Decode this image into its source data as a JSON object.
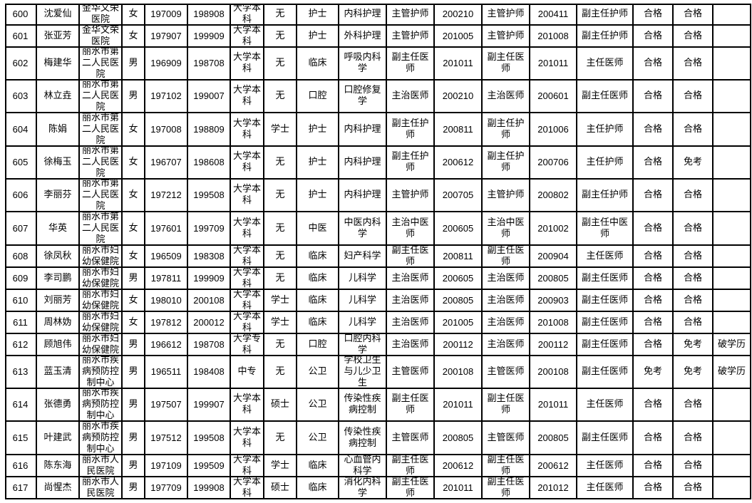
{
  "rows": [
    [
      "600",
      "沈爱仙",
      "金华文荣医院",
      "女",
      "197009",
      "198908",
      "大学本科",
      "无",
      "护士",
      "内科护理",
      "主管护师",
      "200210",
      "主管护师",
      "200411",
      "副主任护师",
      "合格",
      "合格",
      ""
    ],
    [
      "601",
      "张亚芳",
      "金华文荣医院",
      "女",
      "197907",
      "199909",
      "大学本科",
      "无",
      "护士",
      "外科护理",
      "主管护师",
      "201005",
      "主管护师",
      "201008",
      "副主任护师",
      "合格",
      "合格",
      ""
    ],
    [
      "602",
      "梅建华",
      "丽水市第二人民医院",
      "男",
      "196909",
      "198708",
      "大学本科",
      "无",
      "临床",
      "呼吸内科学",
      "副主任医师",
      "201011",
      "副主任医师",
      "201011",
      "主任医师",
      "合格",
      "合格",
      ""
    ],
    [
      "603",
      "林立垚",
      "丽水市第二人民医院",
      "男",
      "197102",
      "199007",
      "大学本科",
      "无",
      "口腔",
      "口腔修复学",
      "主治医师",
      "200210",
      "主治医师",
      "200601",
      "副主任医师",
      "合格",
      "合格",
      ""
    ],
    [
      "604",
      "陈娟",
      "丽水市第二人民医院",
      "女",
      "197008",
      "198809",
      "大学本科",
      "学士",
      "护士",
      "内科护理",
      "副主任护师",
      "200811",
      "副主任护师",
      "201006",
      "主任护师",
      "合格",
      "合格",
      ""
    ],
    [
      "605",
      "徐梅玉",
      "丽水市第二人民医院",
      "女",
      "196707",
      "198608",
      "大学本科",
      "无",
      "护士",
      "内科护理",
      "副主任护师",
      "200612",
      "副主任护师",
      "200706",
      "主任护师",
      "合格",
      "免考",
      ""
    ],
    [
      "606",
      "李丽芬",
      "丽水市第二人民医院",
      "女",
      "197212",
      "199508",
      "大学本科",
      "无",
      "护士",
      "内科护理",
      "主管护师",
      "200705",
      "主管护师",
      "200802",
      "副主任护师",
      "合格",
      "合格",
      ""
    ],
    [
      "607",
      "华英",
      "丽水市第二人民医院",
      "女",
      "197601",
      "199709",
      "大学本科",
      "无",
      "中医",
      "中医内科学",
      "主治中医师",
      "200605",
      "主治中医师",
      "201002",
      "副主任中医师",
      "合格",
      "合格",
      ""
    ],
    [
      "608",
      "徐凤秋",
      "丽水市妇幼保健院",
      "女",
      "196509",
      "198308",
      "大学本科",
      "无",
      "临床",
      "妇产科学",
      "副主任医师",
      "200811",
      "副主任医师",
      "200904",
      "主任医师",
      "合格",
      "合格",
      ""
    ],
    [
      "609",
      "李司鹏",
      "丽水市妇幼保健院",
      "男",
      "197811",
      "199909",
      "大学本科",
      "无",
      "临床",
      "儿科学",
      "主治医师",
      "200605",
      "主治医师",
      "200805",
      "副主任医师",
      "合格",
      "合格",
      ""
    ],
    [
      "610",
      "刘丽芳",
      "丽水市妇幼保健院",
      "女",
      "198010",
      "200108",
      "大学本科",
      "学士",
      "临床",
      "儿科学",
      "主治医师",
      "200805",
      "主治医师",
      "200903",
      "副主任医师",
      "合格",
      "合格",
      ""
    ],
    [
      "611",
      "周林妫",
      "丽水市妇幼保健院",
      "女",
      "197812",
      "200012",
      "大学本科",
      "学士",
      "临床",
      "儿科学",
      "主治医师",
      "201005",
      "主治医师",
      "201008",
      "副主任医师",
      "合格",
      "合格",
      ""
    ],
    [
      "612",
      "顾旭伟",
      "丽水市妇幼保健院",
      "男",
      "196612",
      "198708",
      "大学专科",
      "无",
      "口腔",
      "口腔内科学",
      "主治医师",
      "200112",
      "主治医师",
      "200112",
      "副主任医师",
      "合格",
      "免考",
      "破学历"
    ],
    [
      "613",
      "蓝玉清",
      "丽水市疾病预防控制中心",
      "男",
      "196511",
      "198408",
      "中专",
      "无",
      "公卫",
      "学校卫生与儿少卫生",
      "主管医师",
      "200108",
      "主管医师",
      "200108",
      "副主任医师",
      "免考",
      "免考",
      "破学历"
    ],
    [
      "614",
      "张德勇",
      "丽水市疾病预防控制中心",
      "男",
      "197507",
      "199907",
      "大学本科",
      "硕士",
      "公卫",
      "传染性疾病控制",
      "副主任医师",
      "201011",
      "副主任医师",
      "201011",
      "主任医师",
      "合格",
      "合格",
      ""
    ],
    [
      "615",
      "叶建武",
      "丽水市疾病预防控制中心",
      "男",
      "197512",
      "199508",
      "大学本科",
      "无",
      "公卫",
      "传染性疾病控制",
      "主管医师",
      "200805",
      "主管医师",
      "200805",
      "副主任医师",
      "合格",
      "合格",
      ""
    ],
    [
      "616",
      "陈东海",
      "丽水市人民医院",
      "男",
      "197109",
      "199509",
      "大学本科",
      "学士",
      "临床",
      "心血管内科学",
      "副主任医师",
      "200612",
      "副主任医师",
      "200612",
      "主任医师",
      "合格",
      "合格",
      ""
    ],
    [
      "617",
      "尚惺杰",
      "丽水市人民医院",
      "男",
      "197709",
      "199908",
      "大学本科",
      "硕士",
      "临床",
      "消化内科学",
      "副主任医师",
      "201011",
      "副主任医师",
      "201012",
      "主任医师",
      "合格",
      "合格",
      ""
    ]
  ]
}
